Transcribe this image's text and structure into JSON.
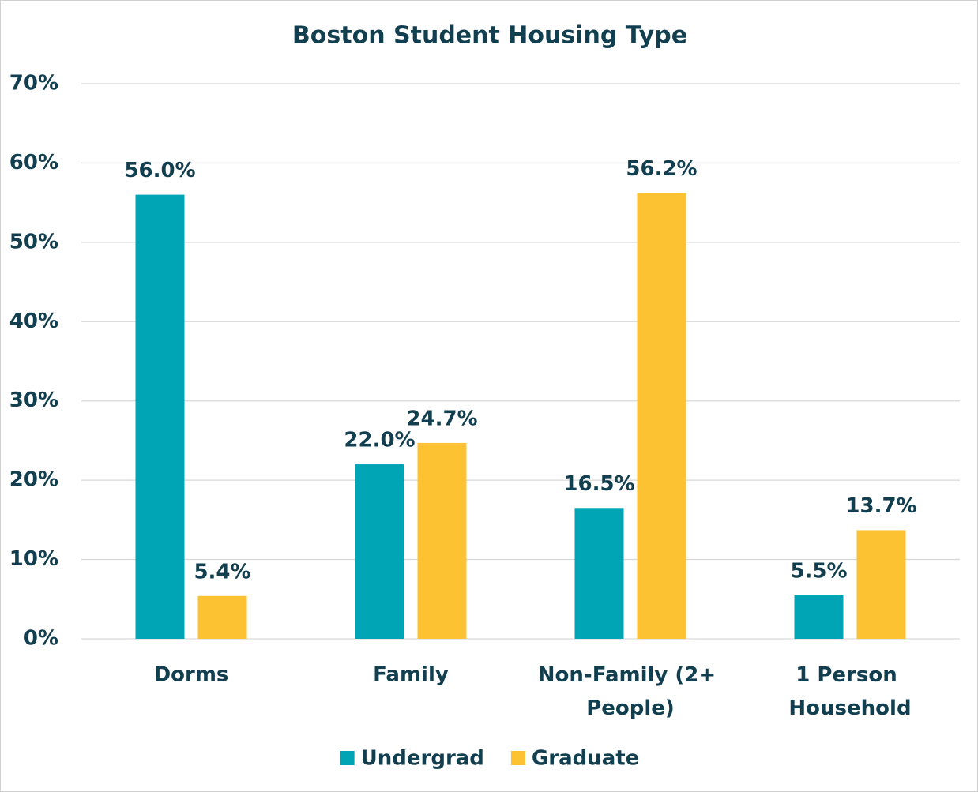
{
  "chart_data": {
    "type": "bar",
    "title": "Boston Student Housing Type",
    "categories": [
      "Dorms",
      "Family",
      "Non-Family (2+ People)",
      "1 Person Household"
    ],
    "series": [
      {
        "name": "Undergrad",
        "color": "#00a5b5",
        "values": [
          56.0,
          22.0,
          16.5,
          5.5
        ],
        "value_labels": [
          "56.0%",
          "22.0%",
          "16.5%",
          "5.5%"
        ]
      },
      {
        "name": "Graduate",
        "color": "#fcc232",
        "values": [
          5.4,
          24.7,
          56.2,
          13.7
        ],
        "value_labels": [
          "5.4%",
          "24.7%",
          "56.2%",
          "13.7%"
        ]
      }
    ],
    "ylim": [
      0,
      70
    ],
    "yticks": [
      {
        "value": 0,
        "label": "0%"
      },
      {
        "value": 10,
        "label": "10%"
      },
      {
        "value": 20,
        "label": "20%"
      },
      {
        "value": 30,
        "label": "30%"
      },
      {
        "value": 40,
        "label": "40%"
      },
      {
        "value": 50,
        "label": "50%"
      },
      {
        "value": 60,
        "label": "60%"
      },
      {
        "value": 70,
        "label": "70%"
      }
    ],
    "grid": true,
    "legend": "bottom"
  }
}
